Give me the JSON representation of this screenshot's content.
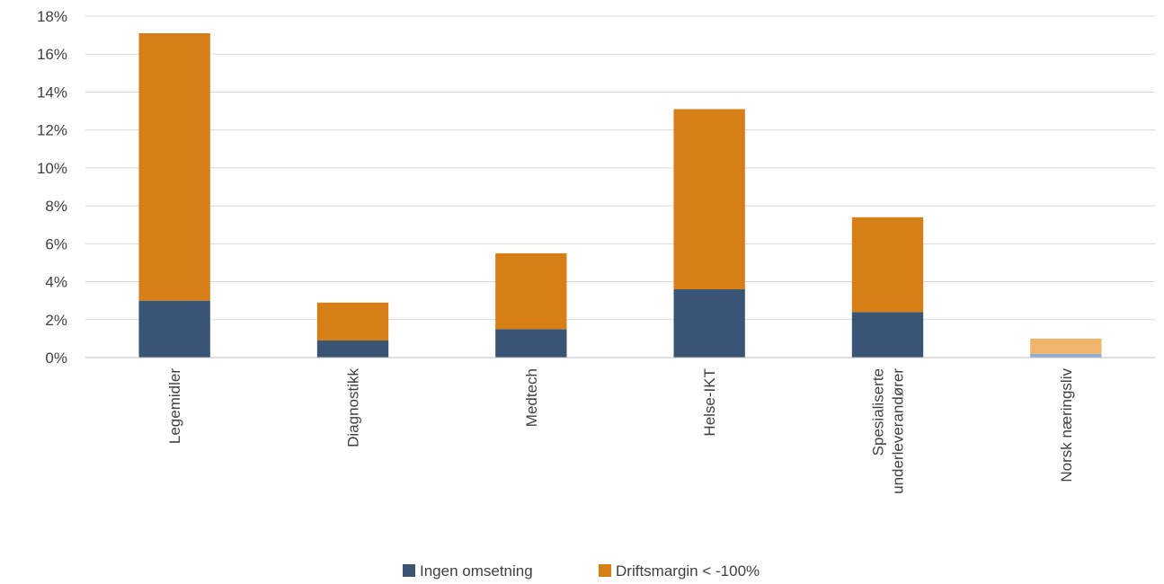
{
  "chart_data": {
    "type": "bar",
    "stacked": true,
    "categories": [
      "Legemidler",
      "Diagnostikk",
      "Medtech",
      "Helse-IKT",
      "Spesialiserte underleverandører",
      "Norsk næringsliv"
    ],
    "category_lines": [
      [
        "Legemidler"
      ],
      [
        "Diagnostikk"
      ],
      [
        "Medtech"
      ],
      [
        "Helse-IKT"
      ],
      [
        "Spesialiserte",
        "underleverandører"
      ],
      [
        "Norsk næringsliv"
      ]
    ],
    "series": [
      {
        "name": "Ingen omsetning",
        "color": "#3a5574",
        "values": [
          3.0,
          0.9,
          1.5,
          3.6,
          2.4,
          0.2
        ]
      },
      {
        "name": "Driftsmargin < -100%",
        "color": "#d67f17",
        "values": [
          14.1,
          2.0,
          4.0,
          9.5,
          5.0,
          0.8
        ]
      }
    ],
    "highlight_category": "Norsk næringsliv",
    "highlight_colors": [
      "#8eaed2",
      "#f0b46d"
    ],
    "ylim": [
      0,
      18
    ],
    "yticks": [
      0,
      2,
      4,
      6,
      8,
      10,
      12,
      14,
      16,
      18
    ],
    "ytick_labels": [
      "0%",
      "2%",
      "4%",
      "6%",
      "8%",
      "10%",
      "12%",
      "14%",
      "16%",
      "18%"
    ],
    "grid": true,
    "legend_position": "bottom"
  }
}
